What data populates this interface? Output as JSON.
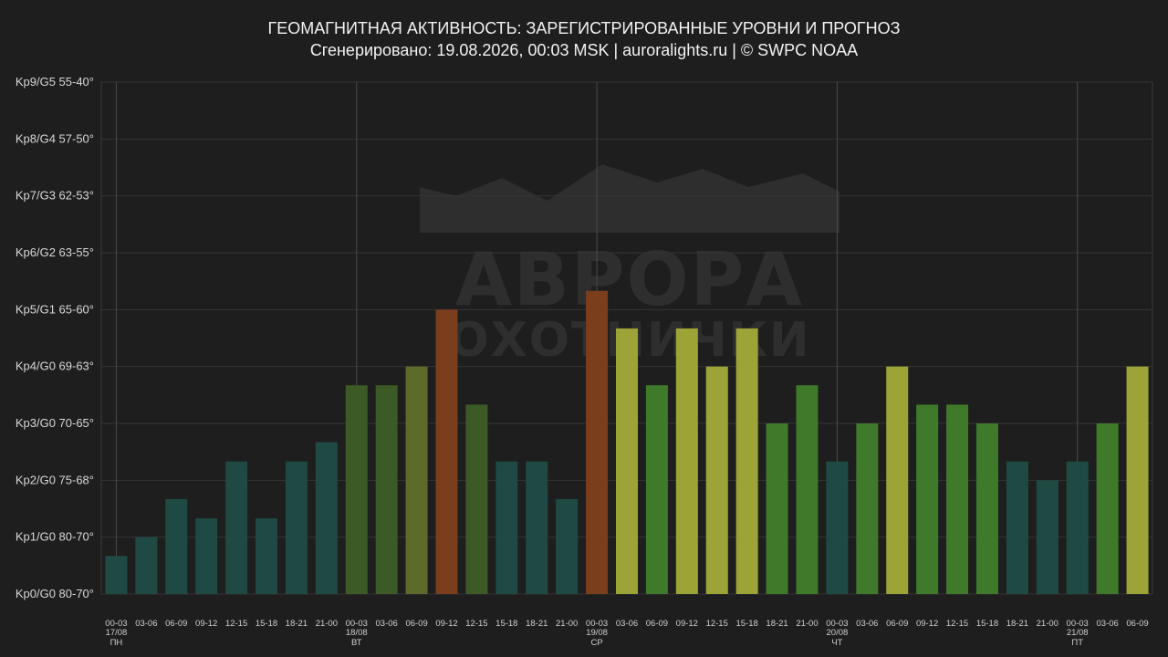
{
  "title": "ГЕОМАГНИТНАЯ АКТИВНОСТЬ: ЗАРЕГИСТРИРОВАННЫЕ УРОВНИ И ПРОГНОЗ",
  "subtitle": "Сгенерировано: 19.08.2026, 00:03 MSK | auroralights.ru | © SWPC NOAA",
  "watermark": {
    "line1": "АВРОРА",
    "line2": "ОХОТНИЧКИ"
  },
  "colors": {
    "background": "#1e1e1e",
    "grid": "#3a3a3a",
    "text": "#e8e8e8"
  },
  "chart_data": {
    "type": "bar",
    "title": "ГЕОМАГНИТНАЯ АКТИВНОСТЬ: ЗАРЕГИСТРИРОВАННЫЕ УРОВНИ И ПРОГНОЗ",
    "ylim": [
      0,
      9
    ],
    "y_tick_labels": [
      "Kp0/G0 80-70°",
      "Kp1/G0 80-70°",
      "Kp2/G0 75-68°",
      "Kp3/G0 70-65°",
      "Kp4/G0 69-63°",
      "Kp5/G1 65-60°",
      "Kp6/G2 63-55°",
      "Kp7/G3 62-53°",
      "Kp8/G4 57-50°",
      "Kp9/G5 55-40°"
    ],
    "grid": true,
    "categories": [
      "00-03",
      "03-06",
      "06-09",
      "09-12",
      "12-15",
      "15-18",
      "18-21",
      "21-00",
      "00-03",
      "03-06",
      "06-09",
      "09-12",
      "12-15",
      "15-18",
      "18-21",
      "21-00",
      "00-03",
      "03-06",
      "06-09",
      "09-12",
      "12-15",
      "15-18",
      "18-21",
      "21-00",
      "00-03",
      "03-06",
      "06-09",
      "09-12",
      "12-15",
      "15-18",
      "18-21",
      "21-00",
      "00-03",
      "03-06",
      "06-09"
    ],
    "day_labels": [
      {
        "index": 0,
        "date": "17/08",
        "weekday": "ПН"
      },
      {
        "index": 8,
        "date": "18/08",
        "weekday": "ВТ"
      },
      {
        "index": 16,
        "date": "19/08",
        "weekday": "СР"
      },
      {
        "index": 24,
        "date": "20/08",
        "weekday": "ЧТ"
      },
      {
        "index": 32,
        "date": "21/08",
        "weekday": "ПТ"
      }
    ],
    "values": [
      0.67,
      1.0,
      1.67,
      1.33,
      2.33,
      1.33,
      2.33,
      2.67,
      3.67,
      3.67,
      4.0,
      5.0,
      3.33,
      2.33,
      2.33,
      1.67,
      5.33,
      4.67,
      3.67,
      4.67,
      4.0,
      4.67,
      3.0,
      3.67,
      2.33,
      3.0,
      4.0,
      3.33,
      3.33,
      3.0,
      2.33,
      2.0,
      2.33,
      3.0,
      4.0
    ],
    "bar_colors": [
      "#1f4a44",
      "#1f4a44",
      "#1f4a44",
      "#1f4a44",
      "#1f4a44",
      "#1f4a44",
      "#1f4a44",
      "#1f4a44",
      "#3b5a25",
      "#3b5a25",
      "#5c6a2a",
      "#7a3e1c",
      "#3b5a25",
      "#1f4a44",
      "#1f4a44",
      "#1f4a44",
      "#7a3e1c",
      "#9ca437",
      "#3e7a29",
      "#9ca437",
      "#9ca437",
      "#9ca437",
      "#3e7a29",
      "#3e7a29",
      "#1f4a44",
      "#3e7a29",
      "#9ca437",
      "#3e7a29",
      "#3e7a29",
      "#3e7a29",
      "#1f4a44",
      "#1f4a44",
      "#1f4a44",
      "#3e7a29",
      "#9ca437"
    ],
    "current_time_index": 16
  }
}
